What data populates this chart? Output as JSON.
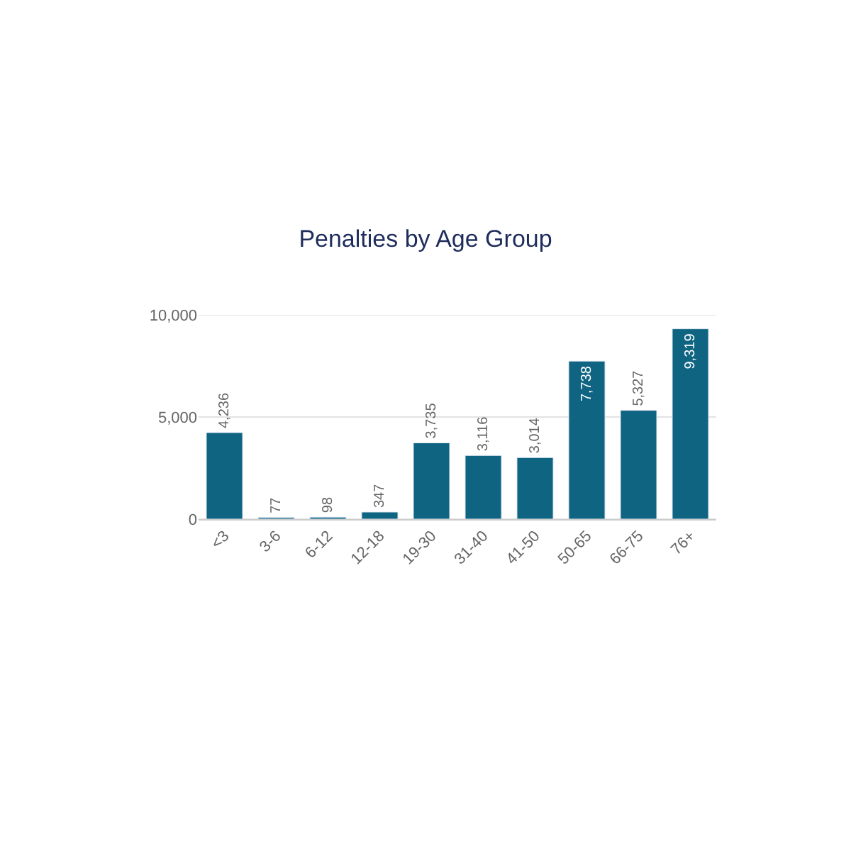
{
  "chart_data": {
    "type": "bar",
    "title": "Penalties by Age Group",
    "categories": [
      "<3",
      "3-6",
      "6-12",
      "12-18",
      "19-30",
      "31-40",
      "41-50",
      "50-65",
      "66-75",
      "76+"
    ],
    "values": [
      4236,
      77,
      98,
      347,
      3735,
      3116,
      3014,
      7738,
      5327,
      9319
    ],
    "color": "#0f6482",
    "value_labels": [
      "4,236",
      "77",
      "98",
      "347",
      "3,735",
      "3,116",
      "3,014",
      "7,738",
      "5,327",
      "9,319"
    ],
    "ylim": [
      0,
      10000
    ],
    "yticks": [
      {
        "value": 0,
        "label": "0"
      },
      {
        "value": 5000,
        "label": "5,000"
      },
      {
        "value": 10000,
        "label": "10,000"
      }
    ],
    "grid": "y"
  }
}
